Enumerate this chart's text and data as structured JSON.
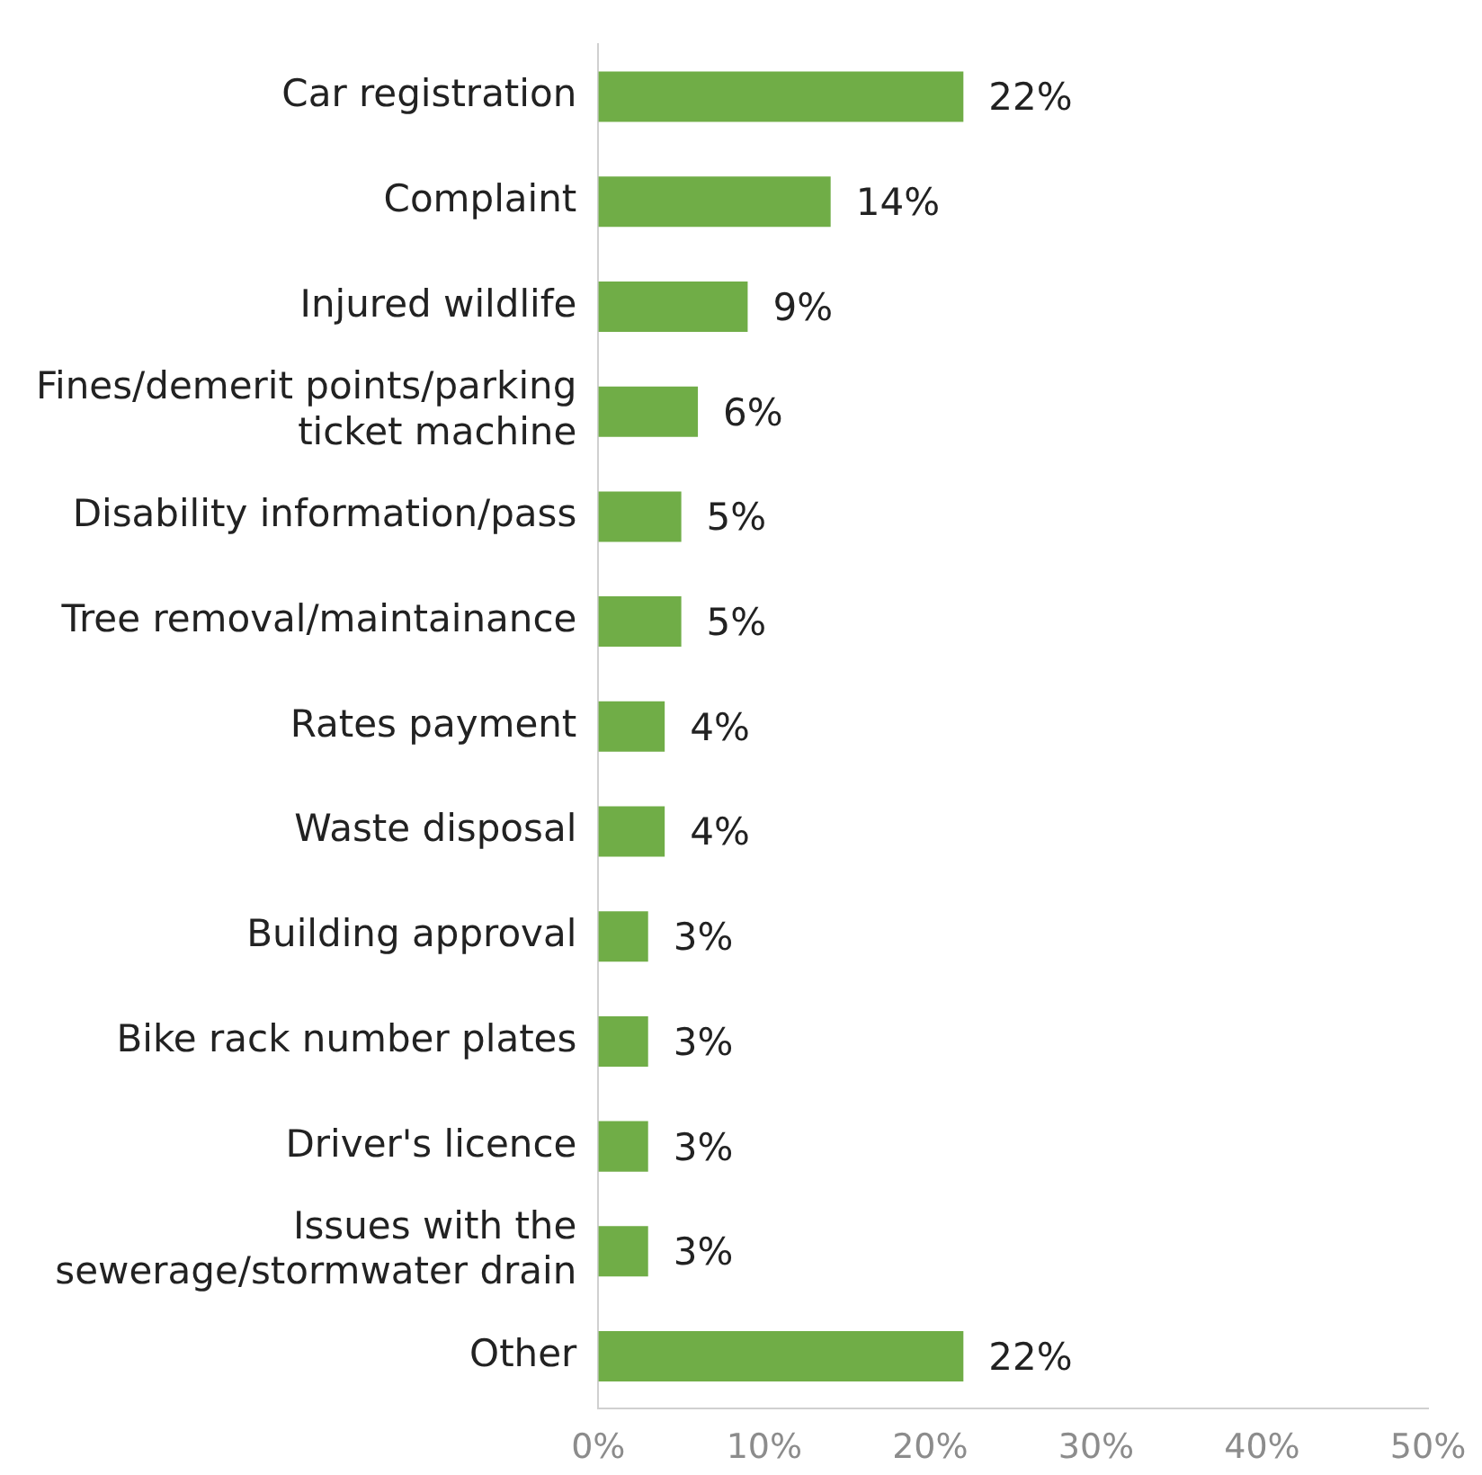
{
  "chart_data": {
    "type": "bar",
    "orientation": "horizontal",
    "categories": [
      "Car registration",
      "Complaint",
      "Injured wildlife",
      "Fines/demerit points/parking ticket machine",
      "Disability information/pass",
      "Tree removal/maintainance",
      "Rates payment",
      "Waste disposal",
      "Building approval",
      "Bike rack number plates",
      "Driver's licence",
      "Issues with the sewerage/stormwater drain",
      "Other"
    ],
    "values": [
      22,
      14,
      9,
      6,
      5,
      5,
      4,
      4,
      3,
      3,
      3,
      3,
      22
    ],
    "color": "#70ad47",
    "xlim": [
      0,
      50
    ],
    "xticks": [
      {
        "value": 0,
        "label": "0%"
      },
      {
        "value": 10,
        "label": "10%"
      },
      {
        "value": 20,
        "label": "20%"
      },
      {
        "value": 30,
        "label": "30%"
      },
      {
        "value": 40,
        "label": "40%"
      },
      {
        "value": 50,
        "label": "50%"
      }
    ],
    "value_labels": [
      "22%",
      "14%",
      "9%",
      "6%",
      "5%",
      "5%",
      "4%",
      "4%",
      "3%",
      "3%",
      "3%",
      "3%",
      "22%"
    ],
    "grid": false,
    "legend": false
  }
}
